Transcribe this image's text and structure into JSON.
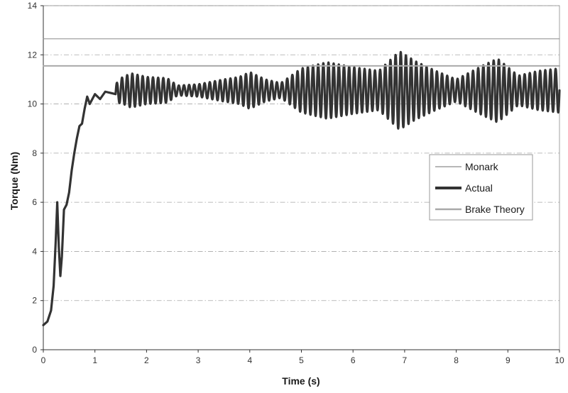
{
  "chart_data": {
    "type": "line",
    "title": "",
    "xlabel": "Time (s)",
    "ylabel": "Torque (Nm)",
    "xlim": [
      0,
      10
    ],
    "ylim": [
      0,
      14
    ],
    "xticks": [
      0,
      1,
      2,
      3,
      4,
      5,
      6,
      7,
      8,
      9,
      10
    ],
    "yticks": [
      0,
      2,
      4,
      6,
      8,
      10,
      12,
      14
    ],
    "grid": "horizontal dash-dot",
    "legend_position": "right",
    "series": [
      {
        "name": "Monark",
        "style": "thin",
        "color": "#8c8c8c",
        "x": [
          0,
          10
        ],
        "y": [
          12.65,
          12.65
        ]
      },
      {
        "name": "Actual",
        "style": "thick",
        "color": "#333333",
        "x": [
          0,
          0.08,
          0.15,
          0.2,
          0.24,
          0.27,
          0.3,
          0.33,
          0.36,
          0.4,
          0.45,
          0.5,
          0.55,
          0.6,
          0.65,
          0.7,
          0.75,
          0.8,
          0.85,
          0.9,
          0.95,
          1.0,
          1.1,
          1.2,
          1.3,
          1.4
        ],
        "y": [
          1.0,
          1.15,
          1.6,
          2.6,
          4.4,
          6.0,
          4.2,
          3.0,
          3.8,
          5.7,
          5.9,
          6.4,
          7.3,
          8.0,
          8.6,
          9.1,
          9.2,
          9.8,
          10.3,
          10.0,
          10.2,
          10.4,
          10.2,
          10.5,
          10.45,
          10.4
        ],
        "oscillation": {
          "start": 1.4,
          "end": 10,
          "period": 0.1,
          "center": 10.55,
          "amplitude_points": [
            [
              1.4,
              0.4
            ],
            [
              1.7,
              0.7
            ],
            [
              2.0,
              0.55
            ],
            [
              2.4,
              0.5
            ],
            [
              2.6,
              0.2
            ],
            [
              3.0,
              0.25
            ],
            [
              3.5,
              0.45
            ],
            [
              3.8,
              0.55
            ],
            [
              4.0,
              0.75
            ],
            [
              4.3,
              0.45
            ],
            [
              4.6,
              0.3
            ],
            [
              5.0,
              0.9
            ],
            [
              5.5,
              1.15
            ],
            [
              6.0,
              0.95
            ],
            [
              6.5,
              0.8
            ],
            [
              6.9,
              1.6
            ],
            [
              7.2,
              1.2
            ],
            [
              7.6,
              0.8
            ],
            [
              8.0,
              0.45
            ],
            [
              8.5,
              1.0
            ],
            [
              8.8,
              1.3
            ],
            [
              9.2,
              0.6
            ],
            [
              9.6,
              0.8
            ],
            [
              10.0,
              0.9
            ]
          ]
        }
      },
      {
        "name": "Brake Theory",
        "style": "medium",
        "color": "#a9a9a9",
        "x": [
          0,
          10
        ],
        "y": [
          11.55,
          11.55
        ]
      }
    ]
  }
}
